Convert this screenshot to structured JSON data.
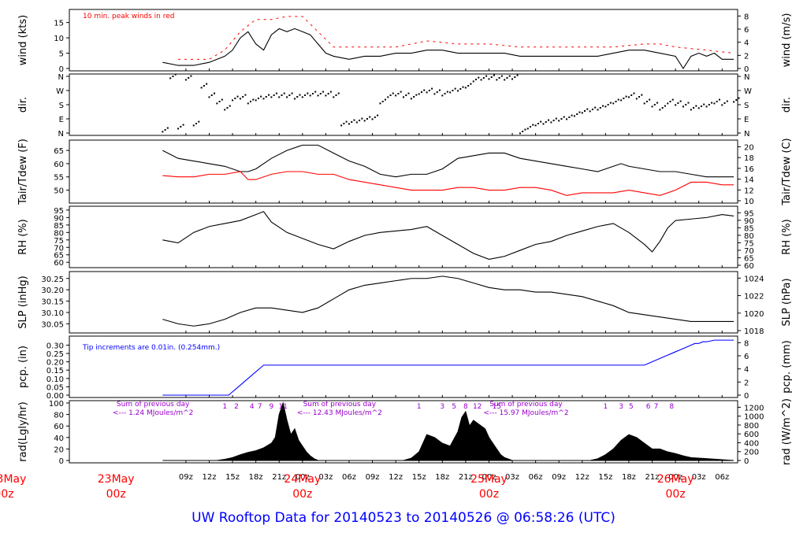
{
  "footer": {
    "title": "UW Rooftop Data for 20140523  to  20140526 @ 06:58:26  (UTC)"
  },
  "colors": {
    "background": "#ffffff",
    "axis": "#000000",
    "peak_wind": "#ff0000",
    "dewpoint": "#ff0000",
    "precip": "#0000ff",
    "annotation_purple": "#9900cc",
    "day_label": "#ff0000",
    "title": "#0000ff"
  },
  "time_axis": {
    "hour_ticks": [
      "09z",
      "12z",
      "15z",
      "18z",
      "21z",
      "00z",
      "03z",
      "06z",
      "09z",
      "12z",
      "15z",
      "18z",
      "21z",
      "00z",
      "03z",
      "06z",
      "09z",
      "12z",
      "15z",
      "18z",
      "21z",
      "00z",
      "03z",
      "06z"
    ],
    "hour_tick_hours": [
      9,
      12,
      15,
      18,
      21,
      24,
      27,
      30,
      33,
      36,
      39,
      42,
      45,
      48,
      51,
      54,
      57,
      60,
      63,
      66,
      69,
      72,
      75,
      78
    ],
    "day_labels": [
      {
        "date": "23May",
        "hour": "00z",
        "at_hour": 0
      },
      {
        "date": "24May",
        "hour": "00z",
        "at_hour": 24
      },
      {
        "date": "25May",
        "hour": "00z",
        "at_hour": 48
      },
      {
        "date": "26May",
        "hour": "00z",
        "at_hour": 72
      }
    ]
  },
  "chart_data": [
    {
      "type": "line",
      "panel": "wind",
      "ylabel_left": "wind (kts)",
      "ylabel_right": "wind (m/s)",
      "ylim_left": [
        0,
        18.5
      ],
      "ylim_right": [
        0,
        9.5
      ],
      "yticks_left": [
        0,
        5,
        10,
        15
      ],
      "yticks_right": [
        0,
        2,
        4,
        6,
        8
      ],
      "annotations": [
        "10 min. peak winds in red"
      ],
      "series": [
        {
          "name": "",
          "color": "#000000",
          "x": [
            6,
            8,
            10,
            12,
            14,
            15,
            16,
            17,
            18,
            19,
            20,
            21,
            22,
            23,
            24,
            25,
            26,
            27,
            28,
            30,
            32,
            34,
            36,
            38,
            40,
            42,
            44,
            46,
            48,
            50,
            52,
            54,
            56,
            58,
            60,
            62,
            64,
            66,
            68,
            70,
            72,
            73,
            74,
            75,
            76,
            77,
            78,
            79.5
          ],
          "y": [
            2,
            1,
            1,
            2,
            4,
            6,
            10,
            12,
            8,
            6,
            11,
            13,
            12,
            13,
            12,
            11,
            8,
            5,
            4,
            3,
            4,
            4,
            5,
            5,
            6,
            6,
            5,
            5,
            5,
            5,
            4,
            4,
            4,
            4,
            4,
            4,
            5,
            6,
            6,
            5,
            4,
            0,
            4,
            5,
            4,
            5,
            3,
            3
          ]
        },
        {
          "name": "",
          "color": "#ff0000",
          "x": [
            8,
            12,
            14,
            16,
            18,
            20,
            22,
            24,
            26,
            28,
            32,
            36,
            40,
            44,
            48,
            52,
            56,
            60,
            64,
            68,
            70,
            72,
            76,
            79.5
          ],
          "y": [
            3,
            3,
            6,
            12,
            16,
            16,
            17,
            17,
            12,
            7,
            7,
            7,
            9,
            8,
            8,
            7,
            7,
            7,
            7,
            8,
            8,
            7,
            6,
            5
          ]
        }
      ]
    },
    {
      "type": "scatter",
      "panel": "direction",
      "ylabel_left": "dir.",
      "ylabel_right": "dir.",
      "yticks_left": [
        "N",
        "E",
        "S",
        "W",
        "N"
      ],
      "yticks_right": [
        "N",
        "E",
        "S",
        "W",
        "N"
      ],
      "ylim_deg": [
        0,
        360
      ],
      "series": [
        {
          "name": "",
          "x": [
            6,
            7,
            8,
            9,
            10,
            11,
            12,
            13,
            14,
            15,
            16,
            17,
            18,
            19,
            20,
            21,
            22,
            23,
            24,
            25,
            26,
            27,
            28,
            29,
            30,
            31,
            32,
            33,
            34,
            35,
            36,
            37,
            38,
            39,
            40,
            41,
            42,
            43,
            44,
            45,
            46,
            47,
            48,
            49,
            50,
            51,
            52,
            53,
            54,
            55,
            56,
            57,
            58,
            59,
            60,
            61,
            62,
            63,
            64,
            65,
            66,
            67,
            68,
            69,
            70,
            71,
            72,
            73,
            74,
            75,
            76,
            77,
            78,
            79.5
          ],
          "y": [
            20,
            360,
            40,
            350,
            60,
            300,
            240,
            200,
            160,
            220,
            230,
            200,
            220,
            230,
            240,
            240,
            240,
            230,
            240,
            250,
            250,
            250,
            240,
            60,
            70,
            80,
            90,
            100,
            200,
            240,
            250,
            240,
            230,
            260,
            270,
            260,
            250,
            270,
            280,
            300,
            340,
            350,
            355,
            350,
            350,
            355,
            10,
            40,
            60,
            70,
            80,
            90,
            100,
            120,
            140,
            150,
            160,
            180,
            200,
            220,
            240,
            230,
            200,
            180,
            160,
            200,
            190,
            180,
            160,
            170,
            180,
            200,
            190,
            210
          ]
        }
      ]
    },
    {
      "type": "line",
      "panel": "temperature",
      "ylabel_left": "Tair/Tdew (F)",
      "ylabel_right": "Tair/Tdew (C)",
      "ylim_left": [
        46,
        68
      ],
      "yticks_left": [
        50,
        55,
        60,
        65
      ],
      "yticks_right": [
        10,
        12,
        14,
        16,
        18,
        20
      ],
      "series": [
        {
          "name": "",
          "color": "#000000",
          "x": [
            6,
            8,
            10,
            12,
            14,
            16,
            17,
            18,
            20,
            22,
            24,
            26,
            28,
            30,
            32,
            34,
            36,
            38,
            40,
            42,
            44,
            46,
            48,
            50,
            52,
            54,
            56,
            58,
            60,
            62,
            64,
            65,
            66,
            68,
            70,
            72,
            74,
            76,
            78,
            79.5
          ],
          "y": [
            65,
            62,
            61,
            60,
            59,
            57,
            57,
            58,
            62,
            65,
            67,
            67,
            64,
            61,
            59,
            56,
            55,
            56,
            56,
            58,
            62,
            63,
            64,
            64,
            62,
            61,
            60,
            59,
            58,
            57,
            59,
            60,
            59,
            58,
            57,
            57,
            56,
            55,
            55,
            55
          ]
        },
        {
          "name": "",
          "color": "#ff0000",
          "x": [
            6,
            8,
            10,
            12,
            14,
            16,
            17,
            18,
            20,
            22,
            24,
            26,
            28,
            30,
            32,
            34,
            36,
            38,
            40,
            42,
            44,
            46,
            48,
            50,
            52,
            54,
            56,
            58,
            60,
            62,
            64,
            66,
            68,
            70,
            72,
            74,
            76,
            78,
            79.5
          ],
          "y": [
            55.5,
            55,
            55,
            56,
            56,
            57,
            54,
            54,
            56,
            57,
            57,
            56,
            56,
            54,
            53,
            52,
            51,
            50,
            50,
            50,
            51,
            51,
            50,
            50,
            51,
            51,
            50,
            48,
            49,
            49,
            49,
            50,
            49,
            48,
            50,
            53,
            53,
            52,
            52
          ]
        }
      ]
    },
    {
      "type": "line",
      "panel": "rh",
      "ylabel_left": "RH (%)",
      "ylabel_right": "RH (%)",
      "ylim": [
        58,
        96
      ],
      "yticks_left": [
        60,
        65,
        70,
        75,
        80,
        85,
        90,
        95
      ],
      "yticks_right": [
        60,
        65,
        70,
        75,
        80,
        85,
        90,
        95
      ],
      "series": [
        {
          "name": "",
          "color": "#000000",
          "x": [
            6,
            8,
            10,
            12,
            14,
            16,
            18,
            19,
            20,
            22,
            24,
            26,
            28,
            30,
            32,
            34,
            36,
            38,
            40,
            42,
            44,
            46,
            48,
            50,
            52,
            54,
            56,
            58,
            60,
            62,
            64,
            66,
            68,
            69,
            70,
            71,
            72,
            74,
            76,
            78,
            79.5
          ],
          "y": [
            75,
            73,
            80,
            84,
            86,
            88,
            92,
            94,
            87,
            80,
            76,
            72,
            69,
            74,
            78,
            80,
            81,
            82,
            84,
            78,
            72,
            66,
            62,
            64,
            68,
            72,
            74,
            78,
            81,
            84,
            86,
            80,
            72,
            67,
            74,
            83,
            88,
            89,
            90,
            92,
            91
          ]
        }
      ]
    },
    {
      "type": "line",
      "panel": "pressure",
      "ylabel_left": "SLP (inHg)",
      "ylabel_right": "SLP (hPa)",
      "ylim_left": [
        30.02,
        30.27
      ],
      "yticks_left": [
        30.05,
        30.1,
        30.15,
        30.2,
        30.25
      ],
      "yticks_right": [
        1018,
        1020,
        1022,
        1024
      ],
      "series": [
        {
          "name": "",
          "color": "#000000",
          "x": [
            6,
            8,
            10,
            12,
            14,
            16,
            18,
            20,
            22,
            24,
            26,
            28,
            30,
            32,
            34,
            36,
            38,
            40,
            42,
            44,
            46,
            48,
            50,
            52,
            54,
            56,
            58,
            60,
            62,
            64,
            66,
            68,
            70,
            72,
            74,
            76,
            78,
            79.5
          ],
          "y": [
            30.07,
            30.05,
            30.04,
            30.05,
            30.07,
            30.1,
            30.12,
            30.12,
            30.11,
            30.1,
            30.12,
            30.16,
            30.2,
            30.22,
            30.23,
            30.24,
            30.25,
            30.25,
            30.26,
            30.25,
            30.23,
            30.21,
            30.2,
            30.2,
            30.19,
            30.19,
            30.18,
            30.17,
            30.15,
            30.13,
            30.1,
            30.09,
            30.08,
            30.07,
            30.06,
            30.06,
            30.06,
            30.06
          ]
        }
      ]
    },
    {
      "type": "line",
      "panel": "precip",
      "ylabel_left": "pcp. (in)",
      "ylabel_right": "pcp. (mm)",
      "ylim_left": [
        0,
        0.34
      ],
      "yticks_left": [
        0.0,
        0.05,
        0.1,
        0.15,
        0.2,
        0.25,
        0.3
      ],
      "yticks_right": [
        0,
        2,
        4,
        6,
        8
      ],
      "annotations": [
        "Tip increments are 0.01in. (0.254mm.)"
      ],
      "series": [
        {
          "name": "",
          "color": "#0000ff",
          "x": [
            6,
            14.5,
            15,
            15.5,
            16,
            16.5,
            17,
            17.5,
            18,
            18.5,
            19,
            68,
            68.5,
            69,
            69.5,
            70,
            70.5,
            71,
            71.5,
            72,
            72.5,
            73,
            73.5,
            74,
            74.5,
            75,
            75.5,
            76,
            77,
            79.5
          ],
          "y": [
            0,
            0,
            0.02,
            0.04,
            0.06,
            0.08,
            0.1,
            0.12,
            0.14,
            0.16,
            0.18,
            0.18,
            0.19,
            0.2,
            0.21,
            0.22,
            0.23,
            0.24,
            0.25,
            0.26,
            0.27,
            0.28,
            0.29,
            0.3,
            0.31,
            0.31,
            0.32,
            0.32,
            0.33,
            0.33
          ]
        }
      ]
    },
    {
      "type": "area",
      "panel": "radiation",
      "ylabel_left": "rad(Lgly/hr)",
      "ylabel_right": "rad (W/m^2)",
      "ylim_left": [
        0,
        100
      ],
      "yticks_left": [
        0,
        20,
        40,
        60,
        80,
        100
      ],
      "yticks_right": [
        0,
        200,
        400,
        600,
        800,
        1000,
        1200
      ],
      "annotations": [
        {
          "line1": "Sum of previous day",
          "line2": "<--- 1.24 MJoules/m^2",
          "at_hour": 0
        },
        {
          "line1": "Sum of previous day",
          "line2": "<--- 12.43 MJoules/m^2",
          "at_hour": 24
        },
        {
          "line1": "Sum of previous day",
          "line2": "<--- 15.97 MJoules/m^2",
          "at_hour": 48
        }
      ],
      "hour_markers": [
        {
          "label": "1",
          "x": 14
        },
        {
          "label": "2",
          "x": 15.5
        },
        {
          "label": "4",
          "x": 17.5
        },
        {
          "label": "7",
          "x": 18.5
        },
        {
          "label": "9",
          "x": 20
        },
        {
          "label": "11",
          "x": 21.5
        },
        {
          "label": "1",
          "x": 39
        },
        {
          "label": "3",
          "x": 42
        },
        {
          "label": "5",
          "x": 43.5
        },
        {
          "label": "8",
          "x": 45
        },
        {
          "label": "12",
          "x": 46.5
        },
        {
          "label": "15",
          "x": 49
        },
        {
          "label": "1",
          "x": 63
        },
        {
          "label": "3",
          "x": 65
        },
        {
          "label": "5",
          "x": 66.3
        },
        {
          "label": "6",
          "x": 68.5
        },
        {
          "label": "7",
          "x": 69.5
        },
        {
          "label": "8",
          "x": 71.5
        }
      ],
      "series": [
        {
          "name": "",
          "color": "#000000",
          "x": [
            6,
            13,
            14,
            15,
            16,
            17,
            18,
            19,
            20,
            20.5,
            21,
            21.5,
            22,
            22.5,
            23,
            23.5,
            24,
            24.5,
            25,
            25.5,
            26,
            37,
            38,
            39,
            40,
            41,
            42,
            43,
            44,
            44.5,
            45,
            45.5,
            46,
            46.5,
            47,
            47.5,
            48,
            48.5,
            49,
            49.5,
            50,
            51,
            61,
            62,
            63,
            64,
            65,
            66,
            67,
            68,
            69,
            70,
            71,
            72,
            73,
            74,
            79.5
          ],
          "y": [
            0,
            0,
            2,
            5,
            10,
            14,
            17,
            22,
            30,
            40,
            80,
            100,
            70,
            45,
            55,
            35,
            25,
            15,
            8,
            3,
            0,
            0,
            4,
            15,
            45,
            40,
            30,
            25,
            50,
            75,
            85,
            60,
            70,
            65,
            60,
            55,
            40,
            30,
            20,
            10,
            5,
            0,
            0,
            3,
            10,
            20,
            35,
            45,
            40,
            30,
            20,
            20,
            15,
            12,
            8,
            5,
            0
          ]
        }
      ]
    }
  ]
}
